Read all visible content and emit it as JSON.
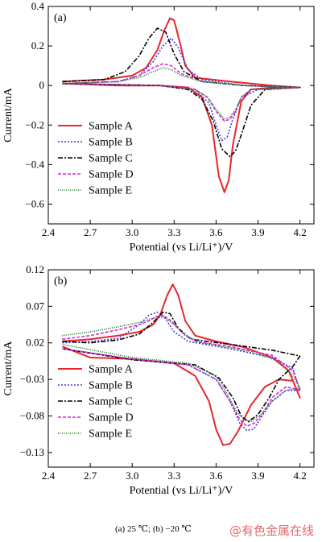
{
  "colors": {
    "A": "#e8262b",
    "B": "#3a3adf",
    "C": "#000000",
    "D": "#d62ad6",
    "E": "#1f7a1f"
  },
  "caption": "(a) 25 ℃; (b) −20 ℃",
  "watermark": "@有色金属在线",
  "chart_data": [
    {
      "type": "line",
      "panel_label": "(a)",
      "xlabel": "Potential (vs Li/Li⁺)/V",
      "ylabel": "Current/mA",
      "xlim": [
        2.4,
        4.3
      ],
      "ylim": [
        -0.7,
        0.4
      ],
      "xticks": [
        2.4,
        2.7,
        3.0,
        3.3,
        3.6,
        3.9,
        4.2
      ],
      "xtick_labels": [
        "2.4",
        "2.7",
        "3.0",
        "3.3",
        "3.6",
        "3.9",
        "4.2"
      ],
      "yticks": [
        0.4,
        0.2,
        0,
        -0.2,
        -0.4,
        -0.6
      ],
      "ytick_labels": [
        "0.4",
        "0.2",
        "0",
        "−0.2",
        "−0.4",
        "−0.6"
      ],
      "legend": {
        "placement": "lower-left",
        "entries": [
          "Sample A",
          "Sample B",
          "Sample C",
          "Sample D",
          "Sample E"
        ]
      },
      "series": [
        {
          "name": "Sample A",
          "key": "A",
          "dash": "solid",
          "points": [
            [
              2.5,
              0.02
            ],
            [
              2.8,
              0.03
            ],
            [
              3.0,
              0.05
            ],
            [
              3.1,
              0.09
            ],
            [
              3.18,
              0.18
            ],
            [
              3.23,
              0.28
            ],
            [
              3.27,
              0.34
            ],
            [
              3.3,
              0.33
            ],
            [
              3.34,
              0.22
            ],
            [
              3.38,
              0.1
            ],
            [
              3.45,
              0.04
            ],
            [
              3.7,
              0.02
            ],
            [
              4.0,
              0.0
            ],
            [
              4.2,
              -0.01
            ],
            [
              4.0,
              -0.01
            ],
            [
              3.85,
              -0.02
            ],
            [
              3.78,
              -0.08
            ],
            [
              3.72,
              -0.3
            ],
            [
              3.69,
              -0.48
            ],
            [
              3.66,
              -0.54
            ],
            [
              3.62,
              -0.46
            ],
            [
              3.57,
              -0.2
            ],
            [
              3.5,
              -0.06
            ],
            [
              3.4,
              -0.01
            ],
            [
              3.2,
              0.0
            ],
            [
              2.9,
              0.0
            ],
            [
              2.5,
              0.01
            ]
          ]
        },
        {
          "name": "Sample B",
          "key": "B",
          "dash": "2,2",
          "points": [
            [
              2.5,
              0.01
            ],
            [
              2.9,
              0.02
            ],
            [
              3.05,
              0.05
            ],
            [
              3.15,
              0.12
            ],
            [
              3.22,
              0.2
            ],
            [
              3.28,
              0.24
            ],
            [
              3.33,
              0.19
            ],
            [
              3.4,
              0.08
            ],
            [
              3.5,
              0.03
            ],
            [
              3.8,
              0.0
            ],
            [
              4.2,
              -0.01
            ],
            [
              3.9,
              -0.02
            ],
            [
              3.78,
              -0.06
            ],
            [
              3.72,
              -0.17
            ],
            [
              3.68,
              -0.26
            ],
            [
              3.64,
              -0.28
            ],
            [
              3.6,
              -0.2
            ],
            [
              3.55,
              -0.09
            ],
            [
              3.45,
              -0.02
            ],
            [
              3.2,
              0.0
            ],
            [
              2.5,
              0.01
            ]
          ]
        },
        {
          "name": "Sample C",
          "key": "C",
          "dash": "6,2,2,2",
          "points": [
            [
              2.5,
              0.02
            ],
            [
              2.8,
              0.03
            ],
            [
              2.95,
              0.07
            ],
            [
              3.05,
              0.15
            ],
            [
              3.12,
              0.24
            ],
            [
              3.18,
              0.29
            ],
            [
              3.24,
              0.27
            ],
            [
              3.3,
              0.16
            ],
            [
              3.37,
              0.07
            ],
            [
              3.5,
              0.02
            ],
            [
              3.8,
              0.0
            ],
            [
              4.2,
              -0.01
            ],
            [
              3.95,
              -0.02
            ],
            [
              3.85,
              -0.1
            ],
            [
              3.78,
              -0.25
            ],
            [
              3.74,
              -0.33
            ],
            [
              3.7,
              -0.36
            ],
            [
              3.64,
              -0.32
            ],
            [
              3.58,
              -0.18
            ],
            [
              3.5,
              -0.07
            ],
            [
              3.4,
              -0.02
            ],
            [
              3.2,
              0.0
            ],
            [
              2.5,
              0.01
            ]
          ]
        },
        {
          "name": "Sample D",
          "key": "D",
          "dash": "4,2",
          "points": [
            [
              2.5,
              0.01
            ],
            [
              2.9,
              0.02
            ],
            [
              3.05,
              0.05
            ],
            [
              3.15,
              0.09
            ],
            [
              3.22,
              0.11
            ],
            [
              3.28,
              0.1
            ],
            [
              3.35,
              0.06
            ],
            [
              3.5,
              0.02
            ],
            [
              3.8,
              0.0
            ],
            [
              4.2,
              -0.01
            ],
            [
              3.85,
              -0.02
            ],
            [
              3.78,
              -0.06
            ],
            [
              3.74,
              -0.13
            ],
            [
              3.7,
              -0.17
            ],
            [
              3.66,
              -0.18
            ],
            [
              3.6,
              -0.13
            ],
            [
              3.54,
              -0.06
            ],
            [
              3.45,
              -0.02
            ],
            [
              3.2,
              0.0
            ],
            [
              2.5,
              0.01
            ]
          ]
        },
        {
          "name": "Sample E",
          "key": "E",
          "dash": "1,1.5",
          "points": [
            [
              2.5,
              0.01
            ],
            [
              2.9,
              0.02
            ],
            [
              3.05,
              0.04
            ],
            [
              3.15,
              0.07
            ],
            [
              3.22,
              0.09
            ],
            [
              3.28,
              0.08
            ],
            [
              3.35,
              0.05
            ],
            [
              3.5,
              0.02
            ],
            [
              3.8,
              0.0
            ],
            [
              4.2,
              -0.01
            ],
            [
              3.85,
              -0.02
            ],
            [
              3.78,
              -0.06
            ],
            [
              3.74,
              -0.12
            ],
            [
              3.7,
              -0.16
            ],
            [
              3.66,
              -0.17
            ],
            [
              3.6,
              -0.12
            ],
            [
              3.54,
              -0.06
            ],
            [
              3.45,
              -0.02
            ],
            [
              3.2,
              0.0
            ],
            [
              2.5,
              0.01
            ]
          ]
        }
      ]
    },
    {
      "type": "line",
      "panel_label": "(b)",
      "xlabel": "Potential (vs Li/Li⁺)/V",
      "ylabel": "Current/mA",
      "xlim": [
        2.4,
        4.3
      ],
      "ylim": [
        -0.15,
        0.12
      ],
      "xticks": [
        2.4,
        2.7,
        3.0,
        3.3,
        3.6,
        3.9,
        4.2
      ],
      "xtick_labels": [
        "2.4",
        "2.7",
        "3.0",
        "3.3",
        "3.6",
        "3.9",
        "4.2"
      ],
      "yticks": [
        0.12,
        0.07,
        0.02,
        -0.03,
        -0.08,
        -0.13
      ],
      "ytick_labels": [
        "0.12",
        "0.07",
        "0.02",
        "−0.03",
        "−0.08",
        "−0.13"
      ],
      "legend": {
        "placement": "lower-left",
        "entries": [
          "Sample A",
          "Sample B",
          "Sample C",
          "Sample D",
          "Sample E"
        ]
      },
      "series": [
        {
          "name": "Sample A",
          "key": "A",
          "dash": "solid",
          "points": [
            [
              2.5,
              0.022
            ],
            [
              2.7,
              0.025
            ],
            [
              2.9,
              0.03
            ],
            [
              3.05,
              0.035
            ],
            [
              3.15,
              0.045
            ],
            [
              3.2,
              0.058
            ],
            [
              3.25,
              0.085
            ],
            [
              3.29,
              0.1
            ],
            [
              3.33,
              0.085
            ],
            [
              3.38,
              0.05
            ],
            [
              3.45,
              0.03
            ],
            [
              3.6,
              0.022
            ],
            [
              3.8,
              0.014
            ],
            [
              4.0,
              0.0
            ],
            [
              4.12,
              -0.018
            ],
            [
              4.2,
              -0.055
            ],
            [
              4.15,
              -0.032
            ],
            [
              4.05,
              -0.03
            ],
            [
              3.95,
              -0.04
            ],
            [
              3.85,
              -0.065
            ],
            [
              3.76,
              -0.1
            ],
            [
              3.7,
              -0.118
            ],
            [
              3.65,
              -0.12
            ],
            [
              3.6,
              -0.098
            ],
            [
              3.55,
              -0.06
            ],
            [
              3.45,
              -0.025
            ],
            [
              3.3,
              -0.008
            ],
            [
              3.0,
              -0.002
            ],
            [
              2.7,
              0.0
            ],
            [
              2.5,
              0.015
            ]
          ]
        },
        {
          "name": "Sample B",
          "key": "B",
          "dash": "2,2",
          "points": [
            [
              2.5,
              0.02
            ],
            [
              2.7,
              0.022
            ],
            [
              2.9,
              0.026
            ],
            [
              3.05,
              0.045
            ],
            [
              3.12,
              0.058
            ],
            [
              3.18,
              0.062
            ],
            [
              3.23,
              0.055
            ],
            [
              3.3,
              0.035
            ],
            [
              3.4,
              0.022
            ],
            [
              3.7,
              0.012
            ],
            [
              4.0,
              0.0
            ],
            [
              4.15,
              -0.015
            ],
            [
              4.2,
              -0.045
            ],
            [
              4.1,
              -0.045
            ],
            [
              4.0,
              -0.06
            ],
            [
              3.93,
              -0.08
            ],
            [
              3.87,
              -0.098
            ],
            [
              3.82,
              -0.1
            ],
            [
              3.77,
              -0.09
            ],
            [
              3.7,
              -0.06
            ],
            [
              3.6,
              -0.03
            ],
            [
              3.4,
              -0.01
            ],
            [
              3.0,
              -0.003
            ],
            [
              2.5,
              0.012
            ]
          ]
        },
        {
          "name": "Sample C",
          "key": "C",
          "dash": "6,2,2,2",
          "points": [
            [
              2.5,
              0.022
            ],
            [
              2.7,
              0.02
            ],
            [
              2.9,
              0.024
            ],
            [
              3.05,
              0.032
            ],
            [
              3.15,
              0.048
            ],
            [
              3.22,
              0.062
            ],
            [
              3.27,
              0.06
            ],
            [
              3.33,
              0.04
            ],
            [
              3.42,
              0.025
            ],
            [
              3.7,
              0.018
            ],
            [
              4.0,
              0.01
            ],
            [
              4.2,
              0.002
            ],
            [
              4.15,
              -0.012
            ],
            [
              4.05,
              -0.03
            ],
            [
              3.98,
              -0.055
            ],
            [
              3.9,
              -0.078
            ],
            [
              3.83,
              -0.088
            ],
            [
              3.78,
              -0.08
            ],
            [
              3.72,
              -0.055
            ],
            [
              3.62,
              -0.028
            ],
            [
              3.45,
              -0.01
            ],
            [
              3.0,
              -0.003
            ],
            [
              2.5,
              0.012
            ]
          ]
        },
        {
          "name": "Sample D",
          "key": "D",
          "dash": "4,2",
          "points": [
            [
              2.5,
              0.025
            ],
            [
              2.7,
              0.03
            ],
            [
              2.9,
              0.038
            ],
            [
              3.05,
              0.045
            ],
            [
              3.12,
              0.05
            ],
            [
              3.17,
              0.056
            ],
            [
              3.22,
              0.058
            ],
            [
              3.28,
              0.05
            ],
            [
              3.35,
              0.035
            ],
            [
              3.45,
              0.022
            ],
            [
              3.7,
              0.015
            ],
            [
              4.0,
              0.003
            ],
            [
              4.15,
              -0.018
            ],
            [
              4.2,
              -0.045
            ],
            [
              4.1,
              -0.04
            ],
            [
              4.0,
              -0.055
            ],
            [
              3.93,
              -0.078
            ],
            [
              3.87,
              -0.09
            ],
            [
              3.82,
              -0.094
            ],
            [
              3.77,
              -0.085
            ],
            [
              3.7,
              -0.06
            ],
            [
              3.6,
              -0.03
            ],
            [
              3.4,
              -0.01
            ],
            [
              3.0,
              -0.002
            ],
            [
              2.5,
              0.012
            ]
          ]
        },
        {
          "name": "Sample E",
          "key": "E",
          "dash": "1,1.5",
          "points": [
            [
              2.5,
              0.03
            ],
            [
              2.7,
              0.035
            ],
            [
              2.9,
              0.042
            ],
            [
              3.05,
              0.048
            ],
            [
              3.12,
              0.052
            ],
            [
              3.18,
              0.055
            ],
            [
              3.23,
              0.055
            ],
            [
              3.3,
              0.045
            ],
            [
              3.38,
              0.03
            ],
            [
              3.5,
              0.02
            ],
            [
              3.8,
              0.01
            ],
            [
              4.05,
              -0.005
            ],
            [
              4.15,
              -0.025
            ],
            [
              4.2,
              -0.042
            ],
            [
              4.1,
              -0.045
            ],
            [
              4.0,
              -0.06
            ],
            [
              3.92,
              -0.078
            ],
            [
              3.85,
              -0.088
            ],
            [
              3.8,
              -0.085
            ],
            [
              3.75,
              -0.075
            ],
            [
              3.68,
              -0.05
            ],
            [
              3.6,
              -0.025
            ],
            [
              3.4,
              -0.008
            ],
            [
              3.0,
              0.0
            ],
            [
              2.5,
              0.018
            ]
          ]
        }
      ]
    }
  ]
}
